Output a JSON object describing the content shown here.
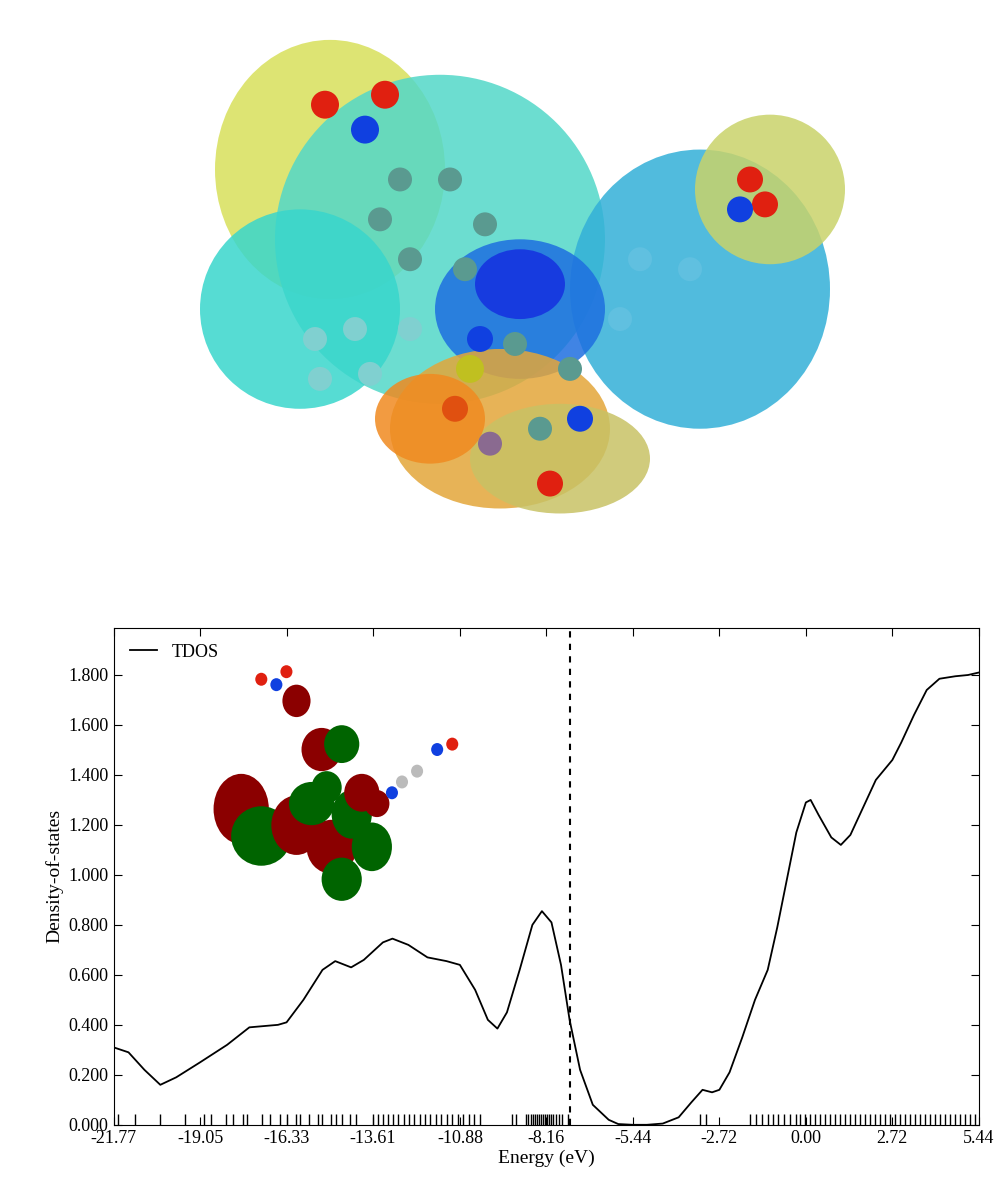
{
  "chart_data": {
    "type": "line",
    "xlabel": "Energy (eV)",
    "ylabel": "Density-of-states",
    "series": [
      {
        "name": "TDOS",
        "color": "#000000",
        "line_style": "solid",
        "x": [
          -21.77,
          -21.3,
          -20.8,
          -20.3,
          -19.8,
          -19.05,
          -18.2,
          -17.5,
          -16.6,
          -16.33,
          -15.8,
          -15.2,
          -14.8,
          -14.3,
          -13.9,
          -13.3,
          -13.0,
          -12.5,
          -11.9,
          -11.3,
          -10.88,
          -10.4,
          -10.0,
          -9.7,
          -9.4,
          -9.0,
          -8.6,
          -8.3,
          -8.0,
          -7.7,
          -7.43,
          -7.1,
          -6.7,
          -6.2,
          -5.9,
          -5.44,
          -5.0,
          -4.5,
          -4.0,
          -3.6,
          -3.25,
          -2.95,
          -2.72,
          -2.4,
          -2.0,
          -1.6,
          -1.2,
          -0.9,
          -0.6,
          -0.3,
          0.0,
          0.15,
          0.4,
          0.8,
          1.1,
          1.4,
          1.8,
          2.2,
          2.72,
          3.0,
          3.4,
          3.8,
          4.2,
          4.7,
          5.1,
          5.44
        ],
        "values": [
          0.31,
          0.29,
          0.22,
          0.16,
          0.19,
          0.25,
          0.32,
          0.39,
          0.4,
          0.41,
          0.5,
          0.62,
          0.655,
          0.63,
          0.66,
          0.73,
          0.745,
          0.72,
          0.67,
          0.655,
          0.64,
          0.54,
          0.42,
          0.385,
          0.45,
          0.62,
          0.8,
          0.855,
          0.81,
          0.64,
          0.42,
          0.22,
          0.08,
          0.02,
          0.003,
          0.0,
          0.0,
          0.005,
          0.03,
          0.09,
          0.14,
          0.13,
          0.14,
          0.21,
          0.35,
          0.5,
          0.62,
          0.79,
          0.98,
          1.17,
          1.29,
          1.3,
          1.24,
          1.15,
          1.12,
          1.16,
          1.27,
          1.38,
          1.46,
          1.53,
          1.64,
          1.74,
          1.785,
          1.795,
          1.8,
          1.81
        ]
      }
    ],
    "homo_line": -7.43,
    "levels": [
      -21.64,
      -21.11,
      -20.32,
      -19.51,
      -18.94,
      -18.72,
      -18.25,
      -18.0,
      -17.71,
      -17.56,
      -17.11,
      -16.86,
      -16.55,
      -16.33,
      -16.04,
      -15.92,
      -15.64,
      -15.35,
      -15.2,
      -14.94,
      -14.79,
      -14.6,
      -14.35,
      -14.16,
      -13.62,
      -13.47,
      -13.31,
      -13.15,
      -12.99,
      -12.84,
      -12.65,
      -12.49,
      -12.33,
      -12.14,
      -11.99,
      -11.83,
      -11.64,
      -11.48,
      -11.3,
      -11.14,
      -10.95,
      -10.79,
      -10.6,
      -10.45,
      -10.26,
      -9.25,
      -9.12,
      -8.81,
      -8.75,
      -8.65,
      -8.59,
      -8.53,
      -8.46,
      -8.4,
      -8.34,
      -8.27,
      -8.21,
      -8.15,
      -8.09,
      -8.02,
      -7.96,
      -7.87,
      -7.77,
      -7.68,
      -7.49,
      -3.34,
      -3.15,
      -1.76,
      -1.57,
      -1.39,
      -1.2,
      -1.04,
      -0.88,
      -0.69,
      -0.5,
      -0.32,
      -0.19,
      -0.03,
      0.12,
      0.28,
      0.44,
      0.6,
      0.76,
      0.91,
      1.07,
      1.23,
      1.39,
      1.54,
      1.7,
      1.86,
      2.01,
      2.17,
      2.33,
      2.49,
      2.64,
      2.8,
      2.96,
      3.12,
      3.27,
      3.43,
      3.59,
      3.75,
      3.9,
      4.06,
      4.22,
      4.38,
      4.53,
      4.69,
      4.85,
      5.0,
      5.16,
      5.32
    ],
    "xlim": [
      -21.77,
      5.44
    ],
    "xticks": [
      -21.77,
      -19.05,
      -16.33,
      -13.61,
      -10.88,
      -8.16,
      -5.44,
      -2.72,
      {
        "value": 0.0,
        "label": "0.00"
      },
      2.72,
      5.44
    ],
    "ylim": [
      0.0,
      1.99
    ],
    "yticks": [
      {
        "value": 0.0,
        "label": "0.000"
      },
      {
        "value": 0.2,
        "label": "0.200"
      },
      {
        "value": 0.4,
        "label": "0.400"
      },
      {
        "value": 0.6,
        "label": "0.600"
      },
      {
        "value": 0.8,
        "label": "0.800"
      },
      {
        "value": 1.0,
        "label": "1.000"
      },
      {
        "value": 1.2,
        "label": "1.200"
      },
      {
        "value": 1.4,
        "label": "1.400"
      },
      {
        "value": 1.6,
        "label": "1.600"
      },
      {
        "value": 1.8,
        "label": "1.800"
      }
    ],
    "legend": "upper left",
    "grid": false
  }
}
